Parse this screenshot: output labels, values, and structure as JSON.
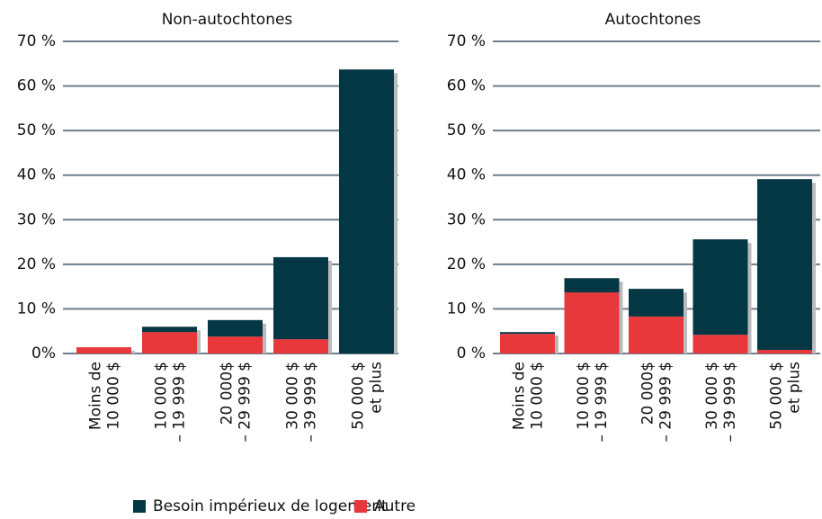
{
  "chart_data": [
    {
      "type": "bar",
      "title": "Non-autochtones",
      "categories": [
        [
          "Moins de",
          "10 000 $"
        ],
        [
          "10 000 $",
          "– 19 999 $"
        ],
        [
          "20 000$",
          "– 29 999 $"
        ],
        [
          "30 000 $",
          "– 39 999 $"
        ],
        [
          "50 000 $",
          "et plus"
        ]
      ],
      "series": [
        {
          "name": "Autre",
          "color": "#e8383b",
          "values": [
            1.4,
            4.8,
            3.8,
            3.2,
            0
          ]
        },
        {
          "name": "Besoin impérieux de logement",
          "color": "#043744",
          "values": [
            0,
            1.2,
            3.7,
            18.4,
            63.7
          ]
        }
      ],
      "stacked": true,
      "ylim": [
        0,
        70
      ],
      "yticks": [
        {
          "value": 0,
          "label": "0%"
        },
        {
          "value": 10,
          "label": "10 %"
        },
        {
          "value": 20,
          "label": "20 %"
        },
        {
          "value": 30,
          "label": "30 %"
        },
        {
          "value": 40,
          "label": "40 %"
        },
        {
          "value": 50,
          "label": "50 %"
        },
        {
          "value": 60,
          "label": "60 %"
        },
        {
          "value": 70,
          "label": "70 %"
        }
      ],
      "grid": true
    },
    {
      "type": "bar",
      "title": "Autochtones",
      "categories": [
        [
          "Moins de",
          "10 000 $"
        ],
        [
          "10 000 $",
          "– 19 999 $"
        ],
        [
          "20 000$",
          "– 29 999 $"
        ],
        [
          "30 000 $",
          "– 39 999 $"
        ],
        [
          "50 000 $",
          "et plus"
        ]
      ],
      "series": [
        {
          "color": "#e8383b",
          "values": [
            4.4,
            13.7,
            8.3,
            4.2,
            0.8
          ]
        },
        {
          "color": "#043744",
          "values": [
            0.4,
            3.2,
            6.2,
            21.4,
            38.3
          ]
        }
      ],
      "stacked": true,
      "ylim": [
        0,
        70
      ],
      "yticks": [
        {
          "value": 0,
          "label": "0 %"
        },
        {
          "value": 10,
          "label": "10 %"
        },
        {
          "value": 20,
          "label": "20 %"
        },
        {
          "value": 30,
          "label": "30 %"
        },
        {
          "value": 40,
          "label": "40 %"
        },
        {
          "value": 50,
          "label": "50 %"
        },
        {
          "value": 60,
          "label": "60 %"
        },
        {
          "value": 70,
          "label": "70 %"
        }
      ],
      "grid": true
    }
  ]
}
